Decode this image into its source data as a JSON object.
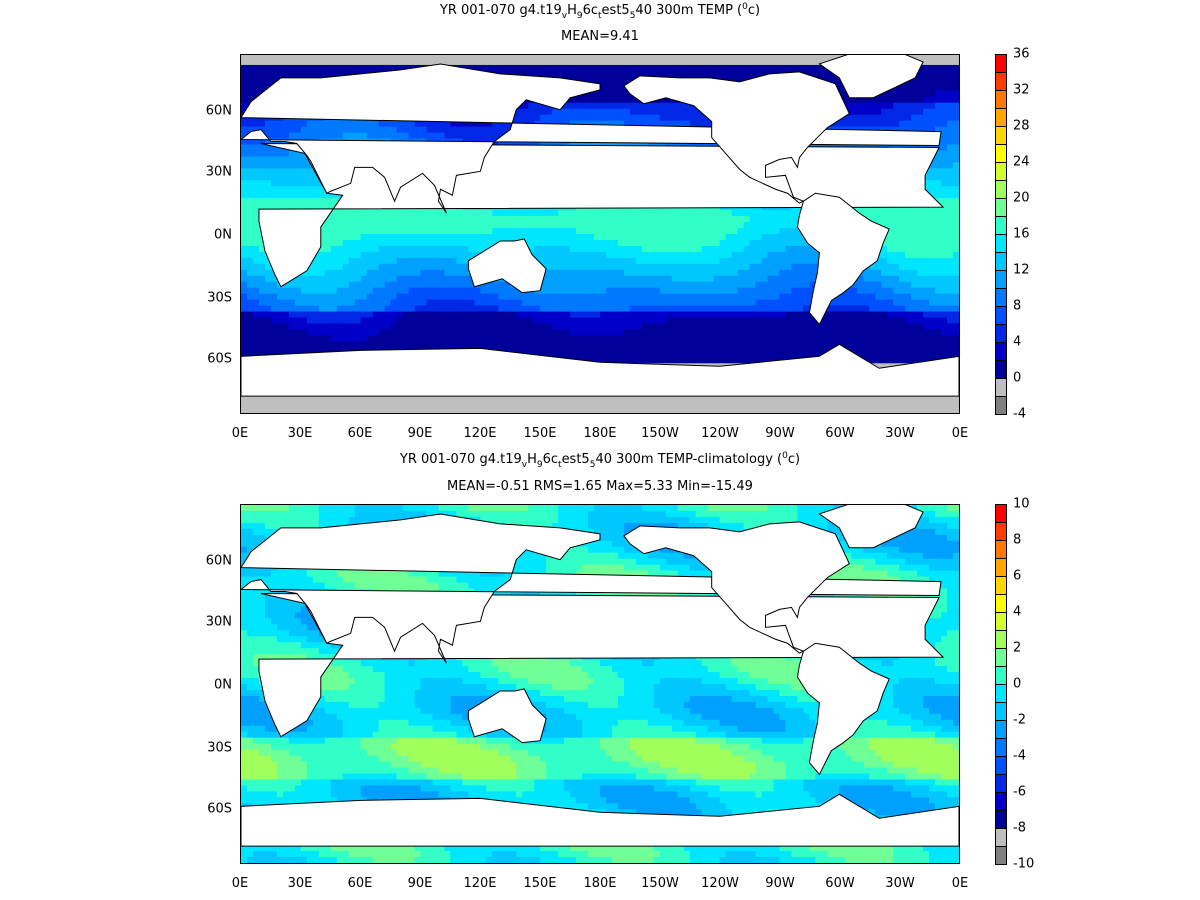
{
  "panels": [
    {
      "title_parts": [
        "YR 001-070 g4.t19",
        "v",
        "H",
        "9",
        "6c",
        "t",
        "est5",
        "5",
        "40 300m TEMP (",
        "0",
        "c)"
      ],
      "stats": "MEAN=9.41",
      "x_ticks": [
        "0E",
        "30E",
        "60E",
        "90E",
        "120E",
        "150E",
        "180E",
        "150W",
        "120W",
        "90W",
        "60W",
        "30W",
        "0E"
      ],
      "y_ticks": [
        "60N",
        "30N",
        "0N",
        "30S",
        "60S"
      ],
      "colorbar": {
        "labels": [
          "36",
          "32",
          "28",
          "24",
          "20",
          "16",
          "12",
          "8",
          "4",
          "0",
          "-4"
        ],
        "colors": [
          "#ff0000",
          "#ff3c00",
          "#ff7800",
          "#ffa500",
          "#ffd700",
          "#ffff00",
          "#d2ff2d",
          "#a0ff5a",
          "#6eff96",
          "#32ffc8",
          "#00e6ff",
          "#00c8ff",
          "#00a0ff",
          "#0078ff",
          "#0050ff",
          "#0028e6",
          "#0000c8",
          "#00009a",
          "#bebebe",
          "#808080"
        ]
      },
      "field": "temperature"
    },
    {
      "title_parts": [
        "YR 001-070 g4.t19",
        "v",
        "H",
        "9",
        "6c",
        "t",
        "est5",
        "5",
        "40 300m TEMP-climatology (",
        "0",
        "c)"
      ],
      "stats": "MEAN=-0.51   RMS=1.65   Max=5.33   Min=-15.49",
      "x_ticks": [
        "0E",
        "30E",
        "60E",
        "90E",
        "120E",
        "150E",
        "180E",
        "150W",
        "120W",
        "90W",
        "60W",
        "30W",
        "0E"
      ],
      "y_ticks": [
        "60N",
        "30N",
        "0N",
        "30S",
        "60S"
      ],
      "colorbar": {
        "labels": [
          "10",
          "8",
          "6",
          "4",
          "2",
          "0",
          "-2",
          "-4",
          "-6",
          "-8",
          "-10"
        ],
        "colors": [
          "#ff0000",
          "#ff3c00",
          "#ff7800",
          "#ffa500",
          "#ffd700",
          "#ffff00",
          "#d2ff2d",
          "#a0ff5a",
          "#6eff96",
          "#32ffc8",
          "#00e6ff",
          "#00c8ff",
          "#00a0ff",
          "#0078ff",
          "#0050ff",
          "#0028e6",
          "#0000c8",
          "#00009a",
          "#bebebe",
          "#808080"
        ]
      },
      "field": "anomaly"
    }
  ]
}
